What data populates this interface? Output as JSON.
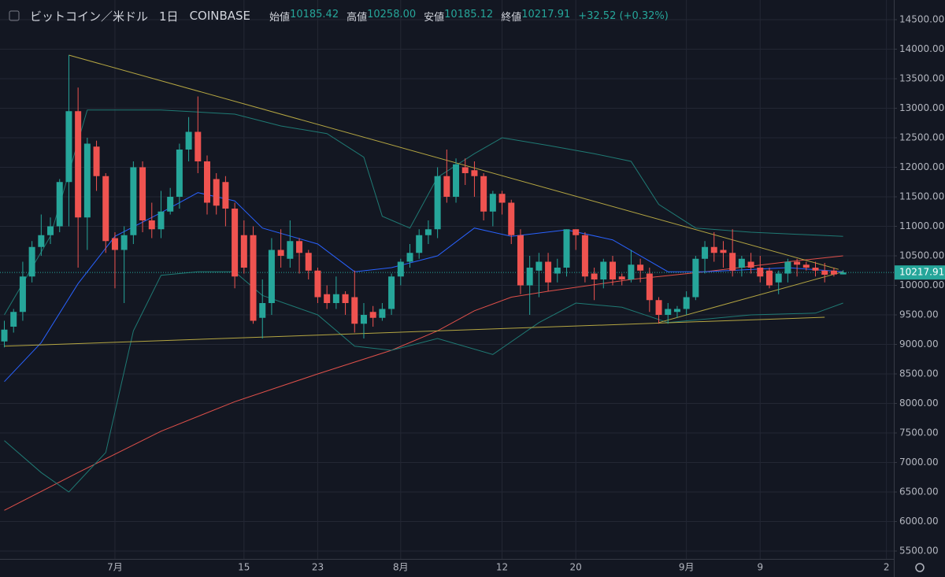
{
  "chart_data": {
    "type": "candlestick",
    "title": "ビットコイン／米ドル",
    "interval": "1日",
    "exchange": "COINBASE",
    "ohlc_labels": [
      {
        "label": "始値",
        "value": "10185.42"
      },
      {
        "label": "高値",
        "value": "10258.00"
      },
      {
        "label": "安値",
        "value": "10185.12"
      },
      {
        "label": "終値",
        "value": "10217.91"
      }
    ],
    "change": "+32.52 (+0.32%)",
    "price_label": "10217.91",
    "up_color": "#26a69a",
    "down_color": "#ef5350",
    "grid": true,
    "x": [
      0,
      1,
      2,
      3,
      4,
      5,
      6,
      7,
      8,
      9,
      10,
      11,
      12,
      13,
      14,
      15,
      16,
      17,
      18,
      19,
      20,
      21,
      22,
      23,
      24,
      25,
      26,
      27,
      28,
      29,
      30,
      31,
      32,
      33,
      34,
      35,
      36,
      37,
      38,
      39,
      40,
      41,
      42,
      43,
      44,
      45,
      46,
      47,
      48,
      49,
      50,
      51,
      52,
      53,
      54,
      55,
      56,
      57,
      58,
      59,
      60,
      61,
      62,
      63,
      64,
      65,
      66,
      67,
      68,
      69,
      70,
      71,
      72,
      73,
      74,
      75,
      76,
      77,
      78,
      79,
      80,
      81,
      82,
      83,
      84,
      85,
      86,
      87,
      88,
      89,
      90,
      91
    ],
    "open": [
      9050,
      9300,
      9550,
      10150,
      10650,
      10850,
      11000,
      11750,
      12950,
      11150,
      12350,
      11850,
      10800,
      10600,
      10850,
      12000,
      11100,
      10950,
      11250,
      11500,
      12300,
      12600,
      12100,
      11800,
      11750,
      11300,
      10850,
      10850,
      9450,
      9700,
      10600,
      10450,
      10750,
      10550,
      10250,
      9850,
      9700,
      9850,
      9800,
      9350,
      9550,
      9450,
      9600,
      10150,
      10400,
      10550,
      10850,
      10950,
      11850,
      11500,
      12000,
      11950,
      11850,
      11250,
      11550,
      11400,
      10850,
      10000,
      10250,
      10400,
      10200,
      10300,
      10950,
      10850,
      10200,
      10100,
      10400,
      10150,
      10100,
      10350,
      10200,
      9750,
      9500,
      9550,
      9600,
      9800,
      10450,
      10650,
      10600,
      10550,
      10300,
      10400,
      10300,
      10250,
      10050,
      10200,
      10400,
      10350,
      10300,
      10250,
      10250,
      10185.42
    ],
    "high": [
      9400,
      9600,
      10400,
      10750,
      11200,
      11150,
      11800,
      13900,
      13350,
      12500,
      12450,
      11900,
      10900,
      11000,
      12100,
      12100,
      11400,
      11600,
      11650,
      12400,
      12850,
      13200,
      12200,
      11900,
      11850,
      11400,
      11100,
      11000,
      10100,
      10800,
      10950,
      11100,
      10800,
      10600,
      10300,
      10000,
      10150,
      9900,
      10250,
      9700,
      9650,
      9700,
      10200,
      10450,
      10700,
      10950,
      11100,
      12000,
      12300,
      12150,
      12150,
      12100,
      11900,
      11600,
      11600,
      11450,
      10950,
      10500,
      10550,
      10550,
      10450,
      10950,
      10950,
      10900,
      10300,
      10450,
      10500,
      10200,
      10600,
      10450,
      10300,
      9800,
      9700,
      9650,
      9900,
      10500,
      10750,
      10900,
      10750,
      10950,
      10500,
      10550,
      10500,
      10300,
      10250,
      10450,
      10450,
      10400,
      10400,
      10380,
      10300,
      10258
    ],
    "low": [
      8950,
      9200,
      9400,
      10050,
      10500,
      10700,
      10900,
      11000,
      10300,
      10600,
      11600,
      10550,
      9950,
      9700,
      10700,
      10900,
      10800,
      10800,
      11200,
      11300,
      12100,
      11900,
      11200,
      11200,
      11000,
      9950,
      10200,
      9350,
      9100,
      9500,
      10300,
      10300,
      10200,
      10100,
      9700,
      9600,
      9600,
      9500,
      9200,
      9100,
      9300,
      9400,
      9500,
      10000,
      10300,
      10450,
      10700,
      10800,
      11400,
      11400,
      11700,
      11500,
      11100,
      11000,
      11200,
      10700,
      9850,
      9500,
      9800,
      9900,
      10050,
      10150,
      10600,
      10050,
      9750,
      9950,
      10000,
      10000,
      10050,
      10050,
      9550,
      9350,
      9350,
      9450,
      9500,
      9750,
      10200,
      10400,
      10300,
      10150,
      10150,
      10200,
      10050,
      9950,
      9850,
      10050,
      10150,
      10250,
      10150,
      10050,
      10150,
      10185.12
    ],
    "close": [
      9250,
      9550,
      10150,
      10650,
      10850,
      11000,
      11750,
      12950,
      11150,
      12400,
      11850,
      10750,
      10600,
      10850,
      12000,
      11100,
      10950,
      11250,
      11500,
      12300,
      12600,
      12100,
      11400,
      11350,
      11300,
      10150,
      10300,
      9400,
      9700,
      10600,
      10500,
      10750,
      10550,
      10250,
      9800,
      9700,
      9850,
      9700,
      9350,
      9500,
      9450,
      9600,
      10150,
      10400,
      10550,
      10850,
      10950,
      11850,
      11500,
      12050,
      11900,
      11850,
      11250,
      11550,
      11400,
      10850,
      10000,
      10300,
      10400,
      10050,
      10300,
      10950,
      10850,
      10150,
      10100,
      10400,
      10100,
      10100,
      10350,
      10250,
      9750,
      9500,
      9600,
      9600,
      9800,
      10450,
      10650,
      10550,
      10550,
      10250,
      10450,
      10300,
      10150,
      10000,
      10200,
      10400,
      10350,
      10300,
      10250,
      10180,
      10185,
      10217.91
    ],
    "lines": [
      {
        "color": "#e0504a",
        "x": [
          0,
          8,
          17,
          25,
          34,
          42,
          47,
          51,
          55,
          59,
          68,
          76,
          85,
          91
        ],
        "values": [
          6190,
          6830,
          7530,
          8030,
          8500,
          8900,
          9230,
          9570,
          9800,
          9900,
          10100,
          10230,
          10400,
          10500
        ]
      },
      {
        "color": "#2962ff",
        "x": [
          0,
          4,
          8,
          12,
          17,
          21,
          25,
          28,
          34,
          38,
          42,
          47,
          51,
          55,
          61,
          66,
          72,
          76,
          85,
          91
        ],
        "values": [
          8370,
          9030,
          10030,
          10830,
          11230,
          11570,
          11430,
          10970,
          10700,
          10230,
          10300,
          10500,
          10970,
          10830,
          10940,
          10770,
          10230,
          10230,
          10300,
          10230
        ]
      },
      {
        "color": "#1f7a74",
        "x": [
          0,
          5,
          9,
          17,
          25,
          30,
          35,
          39,
          41,
          44,
          47,
          51,
          54,
          59,
          64,
          68,
          71,
          75,
          81,
          91
        ],
        "values": [
          9500,
          10830,
          12970,
          12970,
          12900,
          12700,
          12570,
          12170,
          11170,
          10970,
          11830,
          12230,
          12500,
          12370,
          12230,
          12100,
          11370,
          10970,
          10900,
          10830
        ]
      },
      {
        "color": "#1f7a74",
        "x": [
          0,
          4,
          7,
          11,
          14,
          17,
          21,
          25,
          28,
          34,
          38,
          42,
          47,
          53,
          58,
          62,
          67,
          72,
          81,
          88,
          91
        ],
        "values": [
          7370,
          6830,
          6500,
          7170,
          9230,
          10170,
          10230,
          10230,
          9830,
          9500,
          8970,
          8900,
          9100,
          8830,
          9370,
          9700,
          9630,
          9370,
          9500,
          9530,
          9700
        ]
      },
      {
        "color": "#b5a642",
        "x": [
          7,
          90.5
        ],
        "values": [
          13900,
          10270
        ]
      },
      {
        "color": "#b5a642",
        "x": [
          0,
          89
        ],
        "values": [
          8970,
          9460
        ]
      },
      {
        "color": "#b5a642",
        "x": [
          71,
          91
        ],
        "values": [
          9370,
          10230
        ]
      }
    ],
    "xlim": [
      -0.47,
      96.5
    ],
    "xticks": [
      {
        "value": 12,
        "label": "7月"
      },
      {
        "value": 26,
        "label": "15"
      },
      {
        "value": 34,
        "label": "23"
      },
      {
        "value": 43,
        "label": "8月"
      },
      {
        "value": 54,
        "label": "12"
      },
      {
        "value": 62,
        "label": "20"
      },
      {
        "value": 74,
        "label": "9月"
      },
      {
        "value": 82,
        "label": "9"
      },
      {
        "value": 95.7,
        "label": "2"
      }
    ],
    "ylim": [
      5367,
      14833
    ],
    "yticks": [
      {
        "value": 5500,
        "label": "5500.00"
      },
      {
        "value": 6000,
        "label": "6000.00"
      },
      {
        "value": 6500,
        "label": "6500.00"
      },
      {
        "value": 7000,
        "label": "7000.00"
      },
      {
        "value": 7500,
        "label": "7500.00"
      },
      {
        "value": 8000,
        "label": "8000.00"
      },
      {
        "value": 8500,
        "label": "8500.00"
      },
      {
        "value": 9000,
        "label": "9000.00"
      },
      {
        "value": 9500,
        "label": "9500.00"
      },
      {
        "value": 10000,
        "label": "10000.00"
      },
      {
        "value": 10500,
        "label": "10500.00"
      },
      {
        "value": 11000,
        "label": "11000.00"
      },
      {
        "value": 11500,
        "label": "11500.00"
      },
      {
        "value": 12000,
        "label": "12000.00"
      },
      {
        "value": 12500,
        "label": "12500.00"
      },
      {
        "value": 13000,
        "label": "13000.00"
      },
      {
        "value": 13500,
        "label": "13500.00"
      },
      {
        "value": 14000,
        "label": "14000.00"
      },
      {
        "value": 14500,
        "label": "14500.00"
      }
    ]
  }
}
